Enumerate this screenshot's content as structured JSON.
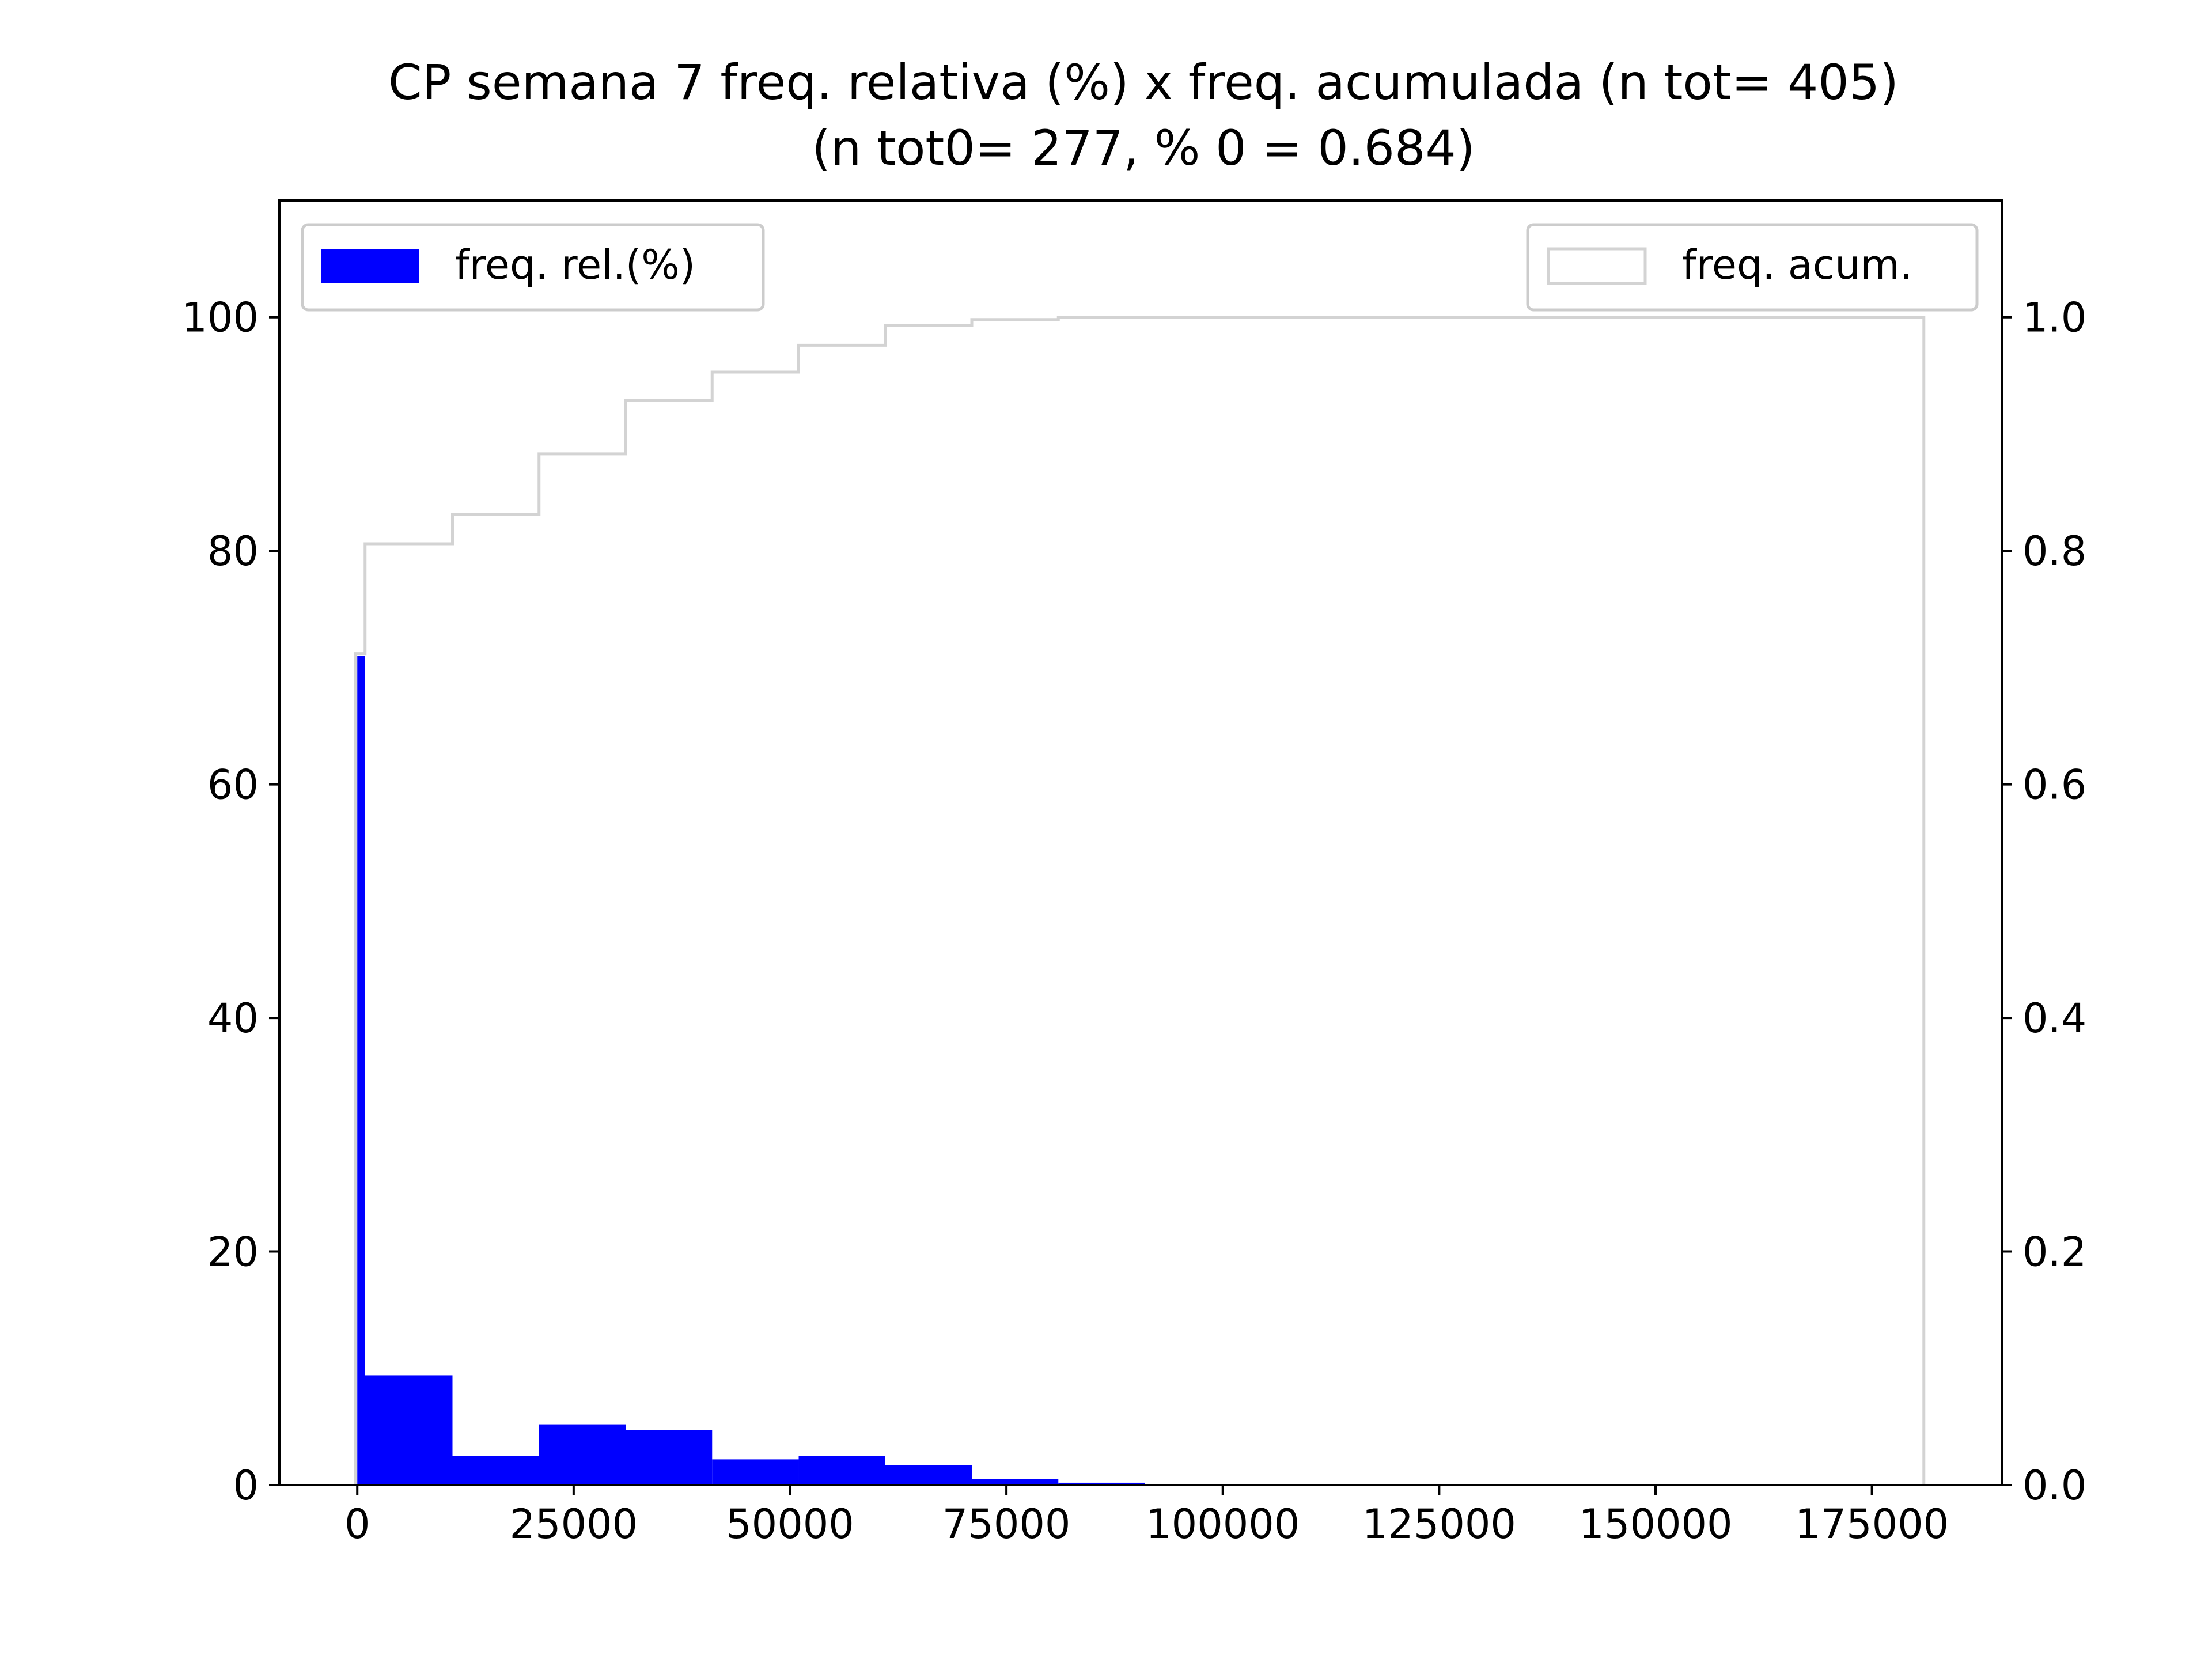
{
  "chart_data": {
    "type": "bar",
    "title": "CP semana 7 freq. relativa (%) x freq. acumulada (n tot= 405)",
    "subtitle": "(n tot0= 277, % 0 = 0.684)",
    "xlabel": "",
    "ylabel": "",
    "y2label": "",
    "xlim": [
      -9000,
      190000
    ],
    "ylim": [
      0,
      110
    ],
    "y2lim": [
      0,
      1.1
    ],
    "x_ticks": [
      0,
      25000,
      50000,
      75000,
      100000,
      125000,
      150000,
      175000
    ],
    "x_tick_labels": [
      "0",
      "25000",
      "50000",
      "75000",
      "100000",
      "125000",
      "150000",
      "175000"
    ],
    "y_ticks": [
      0,
      20,
      40,
      60,
      80,
      100
    ],
    "y_tick_labels": [
      "0",
      "20",
      "40",
      "60",
      "80",
      "100"
    ],
    "y2_ticks": [
      0,
      0.2,
      0.4,
      0.6,
      0.8,
      1.0
    ],
    "y2_tick_labels": [
      "0.0",
      "0.2",
      "0.4",
      "0.6",
      "0.8",
      "1.0"
    ],
    "grid": false,
    "series": [
      {
        "name": "freq. rel.(%)",
        "kind": "histogram",
        "axis": "left",
        "color": "#0000ff",
        "bins": [
          {
            "x0": 0,
            "x1": 900,
            "value": 71.0
          },
          {
            "x0": 900,
            "x1": 11000,
            "value": 9.4
          },
          {
            "x0": 11000,
            "x1": 21000,
            "value": 2.5
          },
          {
            "x0": 21000,
            "x1": 31000,
            "value": 5.2
          },
          {
            "x0": 31000,
            "x1": 41000,
            "value": 4.7
          },
          {
            "x0": 41000,
            "x1": 51000,
            "value": 2.2
          },
          {
            "x0": 51000,
            "x1": 61000,
            "value": 2.5
          },
          {
            "x0": 61000,
            "x1": 71000,
            "value": 1.7
          },
          {
            "x0": 71000,
            "x1": 81000,
            "value": 0.5
          },
          {
            "x0": 81000,
            "x1": 91000,
            "value": 0.2
          }
        ]
      },
      {
        "name": "freq. acum.",
        "kind": "step",
        "axis": "right",
        "color": "#d3d3d3",
        "x_start": -200,
        "x_end": 181000,
        "steps": [
          {
            "x0": -200,
            "x1": 900,
            "value": 0.712
          },
          {
            "x0": 900,
            "x1": 11000,
            "value": 0.806
          },
          {
            "x0": 11000,
            "x1": 21000,
            "value": 0.831
          },
          {
            "x0": 21000,
            "x1": 31000,
            "value": 0.883
          },
          {
            "x0": 31000,
            "x1": 41000,
            "value": 0.929
          },
          {
            "x0": 41000,
            "x1": 51000,
            "value": 0.953
          },
          {
            "x0": 51000,
            "x1": 61000,
            "value": 0.976
          },
          {
            "x0": 61000,
            "x1": 71000,
            "value": 0.993
          },
          {
            "x0": 71000,
            "x1": 81000,
            "value": 0.998
          },
          {
            "x0": 81000,
            "x1": 181000,
            "value": 1.0
          }
        ]
      }
    ],
    "legends": [
      {
        "series": "freq. rel.(%)",
        "placement": "upper-left"
      },
      {
        "series": "freq. acum.",
        "placement": "upper-right"
      }
    ]
  }
}
